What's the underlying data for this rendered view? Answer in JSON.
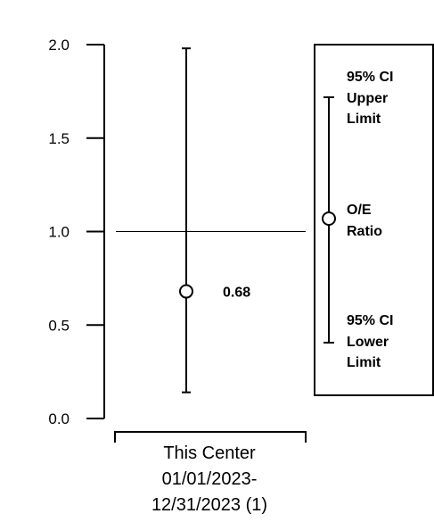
{
  "chart_data": {
    "type": "scatter",
    "ylim": [
      0,
      2
    ],
    "y_ticks": [
      "0.0",
      "0.5",
      "1.0",
      "1.5",
      "2.0"
    ],
    "reference_line": 1.0,
    "category_label": [
      "This Center",
      "01/01/2023-",
      "12/31/2023 (1)"
    ],
    "point": {
      "value": 0.68,
      "label": "0.68",
      "ci_lower": 0.14,
      "ci_upper": 1.98
    },
    "legend": {
      "upper": [
        "95% CI",
        "Upper",
        "Limit"
      ],
      "middle": [
        "O/E",
        "Ratio"
      ],
      "lower": [
        "95% CI",
        "Lower",
        "Limit"
      ]
    }
  }
}
